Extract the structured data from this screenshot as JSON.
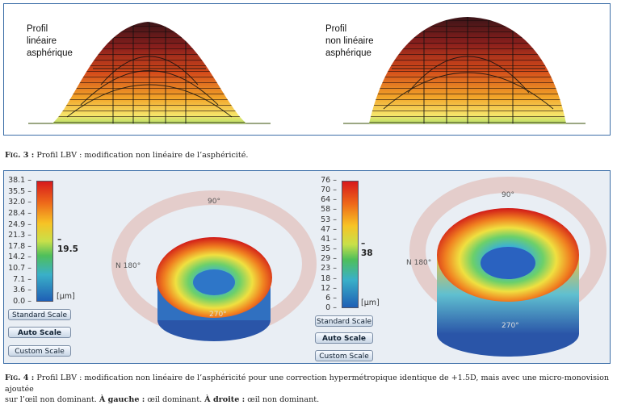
{
  "fig3": {
    "left_label": [
      "Profil",
      "linéaire",
      "asphérique"
    ],
    "right_label": [
      "Profil",
      "non linéaire",
      "asphérique"
    ],
    "caption_prefix": "Fig. 3 :",
    "caption_text": " Profil LBV : modification non linéaire de l’asphéricité."
  },
  "fig4": {
    "left_map": {
      "ticks": [
        "38.1",
        "35.5",
        "32.0",
        "28.4",
        "24.9",
        "21.3",
        "17.8",
        "14.2",
        "10.7",
        "7.1",
        "3.6",
        "0.0"
      ],
      "marker_value": "19.5",
      "unit": "[µm]",
      "angle_90": "90°",
      "angle_180": "N  180°",
      "angle_270": "270°"
    },
    "right_map": {
      "ticks": [
        "76",
        "70",
        "64",
        "58",
        "53",
        "47",
        "41",
        "35",
        "29",
        "23",
        "18",
        "12",
        "6",
        "0"
      ],
      "marker_value": "38",
      "unit": "[µm]",
      "angle_90": "90°",
      "angle_180": "N  180°",
      "angle_270": "270°"
    },
    "buttons": {
      "standard": "Standard Scale",
      "auto": "Auto Scale",
      "custom": "Custom Scale"
    },
    "caption_prefix": "Fig. 4 :",
    "caption_line1": " Profil LBV : modification non linéaire de l’asphéricité pour une correction hypermétropique identique de +1.5D, mais avec une micro-monovision ajoutée",
    "caption_line2_a": "sur l’œil non dominant. ",
    "caption_left_bold": "À gauche :",
    "caption_left_text": " œil dominant. ",
    "caption_right_bold": "À droite :",
    "caption_right_text": " œil non dominant."
  },
  "colors": {
    "frame": "#3d6fa8",
    "panel_bg": "#e9eef4"
  }
}
